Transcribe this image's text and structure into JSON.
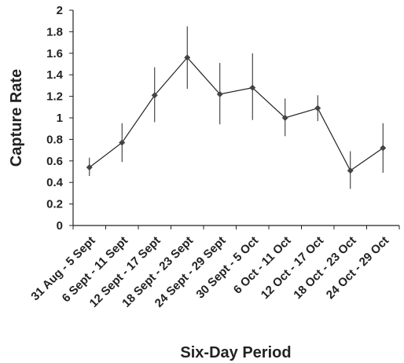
{
  "chart_data": {
    "type": "line",
    "title": "",
    "xlabel": "Six-Day Period",
    "ylabel": "Capture Rate",
    "categories": [
      "31 Aug - 5 Sept",
      "6 Sept - 11 Sept",
      "12 Sept - 17 Sept",
      "18 Sept - 23 Sept",
      "24 Sept - 29 Sept",
      "30 Sept - 5 Oct",
      "6 Oct - 11 Oct",
      "12 Oct - 17 Oct",
      "18 Oct - 23 Oct",
      "24 Oct - 29 Oct"
    ],
    "series": [
      {
        "values": [
          0.54,
          0.77,
          1.21,
          1.56,
          1.22,
          1.28,
          1.0,
          1.09,
          0.51,
          0.72
        ],
        "error_low": [
          0.46,
          0.59,
          0.96,
          1.27,
          0.94,
          0.98,
          0.83,
          0.97,
          0.34,
          0.49
        ],
        "error_high": [
          0.63,
          0.95,
          1.47,
          1.85,
          1.51,
          1.6,
          1.18,
          1.21,
          0.69,
          0.95
        ]
      }
    ],
    "ylim": [
      0,
      2
    ],
    "yticks": [
      "0",
      "0.2",
      "0.4",
      "0.6",
      "0.8",
      "1",
      "1.2",
      "1.4",
      "1.6",
      "1.8",
      "2"
    ],
    "grid": false,
    "colors": {
      "line": "#222222",
      "marker": "#444444",
      "axis": "#222222"
    }
  }
}
